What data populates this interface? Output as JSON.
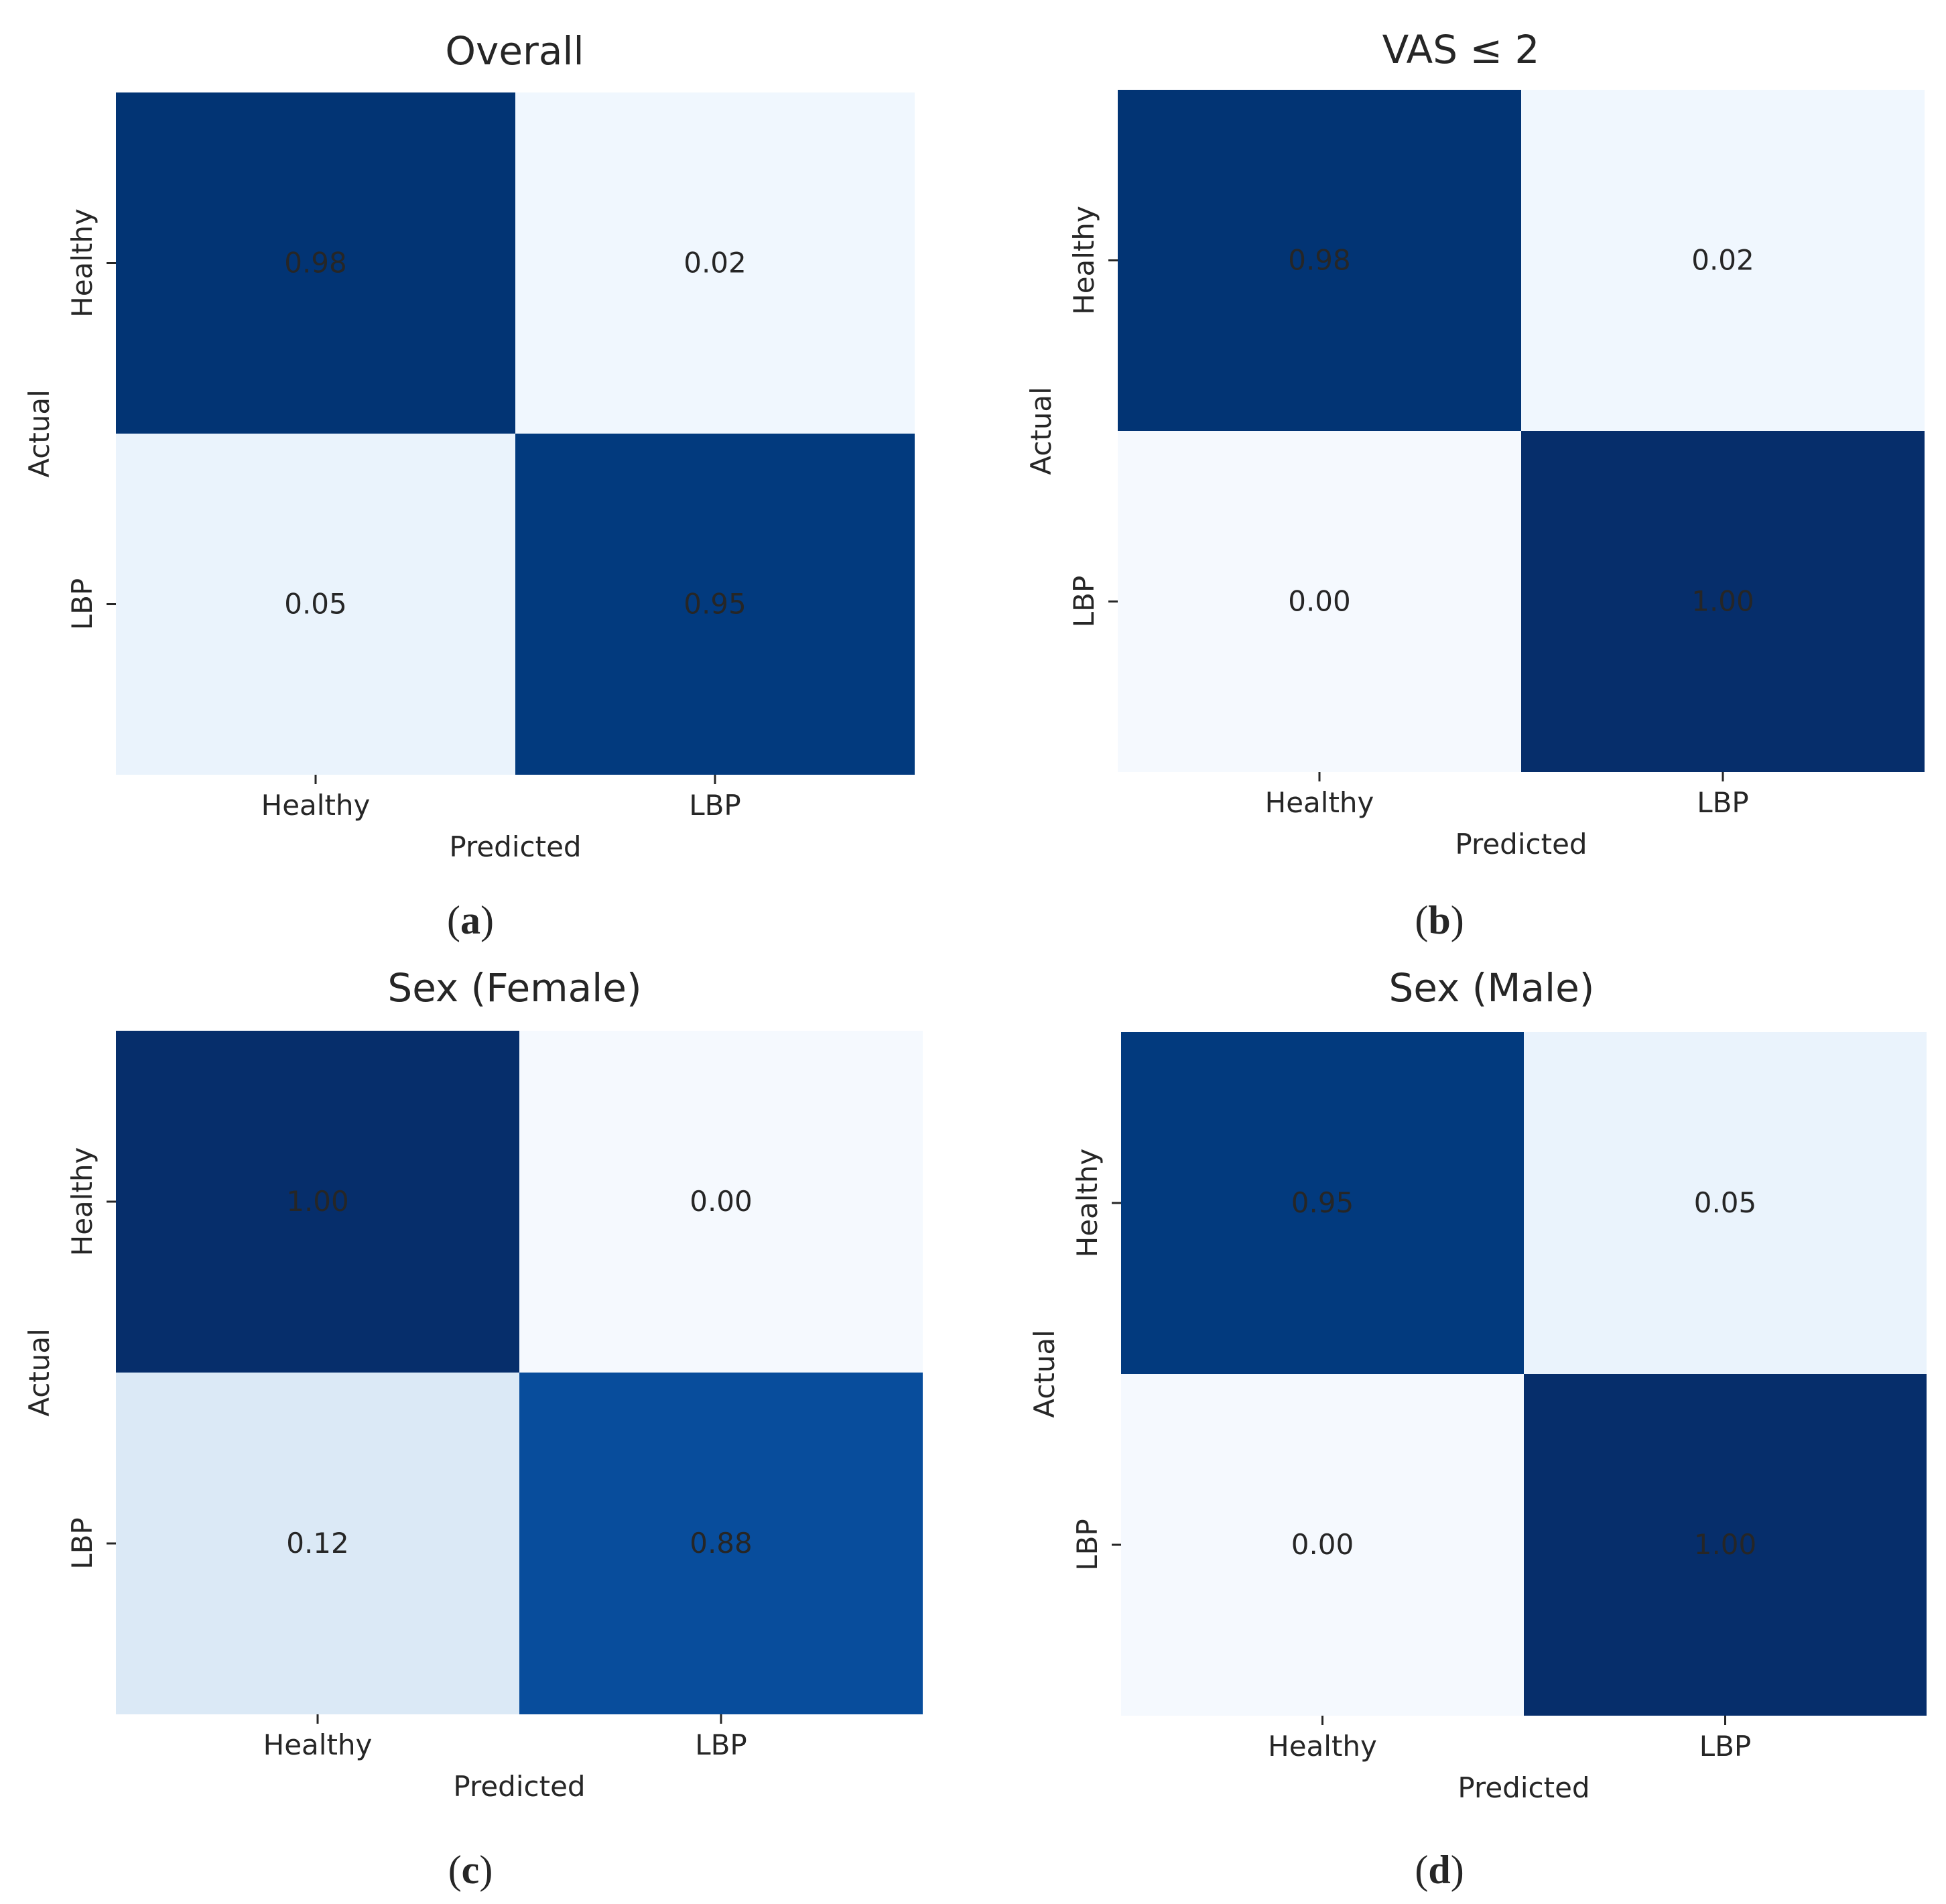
{
  "figure": {
    "panels": [
      {
        "letter": "a"
      },
      {
        "letter": "b"
      },
      {
        "letter": "c"
      },
      {
        "letter": "d"
      }
    ]
  },
  "colors": {
    "text": "#262626",
    "value_on_dark": "#f0f0f0",
    "value_on_light": "#262626",
    "colormap": "Blues"
  },
  "chart_data": [
    {
      "type": "heatmap",
      "title": "Overall",
      "xlabel": "Predicted",
      "ylabel": "Actual",
      "x_categories": [
        "Healthy",
        "LBP"
      ],
      "y_categories": [
        "Healthy",
        "LBP"
      ],
      "values": [
        [
          0.98,
          0.02
        ],
        [
          0.05,
          0.95
        ]
      ],
      "labels": [
        [
          "0.98",
          "0.02"
        ],
        [
          "0.05",
          "0.95"
        ]
      ],
      "colors": [
        [
          "#023474",
          "#f0f7fe"
        ],
        [
          "#eaf3fc",
          "#023a7e"
        ]
      ],
      "colorbar": false
    },
    {
      "type": "heatmap",
      "title": "VAS ≤ 2",
      "xlabel": "Predicted",
      "ylabel": "Actual",
      "x_categories": [
        "Healthy",
        "LBP"
      ],
      "y_categories": [
        "Healthy",
        "LBP"
      ],
      "values": [
        [
          0.98,
          0.02
        ],
        [
          0.0,
          1.0
        ]
      ],
      "labels": [
        [
          "0.98",
          "0.02"
        ],
        [
          "0.00",
          "1.00"
        ]
      ],
      "colors": [
        [
          "#023474",
          "#f0f7fe"
        ],
        [
          "#f5f9fe",
          "#062e6b"
        ]
      ],
      "colorbar": false
    },
    {
      "type": "heatmap",
      "title": "Sex (Female)",
      "xlabel": "Predicted",
      "ylabel": "Actual",
      "x_categories": [
        "Healthy",
        "LBP"
      ],
      "y_categories": [
        "Healthy",
        "LBP"
      ],
      "values": [
        [
          1.0,
          0.0
        ],
        [
          0.12,
          0.88
        ]
      ],
      "labels": [
        [
          "1.00",
          "0.00"
        ],
        [
          "0.12",
          "0.88"
        ]
      ],
      "colors": [
        [
          "#062e6b",
          "#f5f9fe"
        ],
        [
          "#dbe9f6",
          "#084d9c"
        ]
      ],
      "colorbar": false
    },
    {
      "type": "heatmap",
      "title": "Sex (Male)",
      "xlabel": "Predicted",
      "ylabel": "Actual",
      "x_categories": [
        "Healthy",
        "LBP"
      ],
      "y_categories": [
        "Healthy",
        "LBP"
      ],
      "values": [
        [
          0.95,
          0.05
        ],
        [
          0.0,
          1.0
        ]
      ],
      "labels": [
        [
          "0.95",
          "0.05"
        ],
        [
          "0.00",
          "1.00"
        ]
      ],
      "colors": [
        [
          "#023a7e",
          "#eaf3fc"
        ],
        [
          "#f5f9fe",
          "#062e6b"
        ]
      ],
      "colorbar": false
    }
  ]
}
